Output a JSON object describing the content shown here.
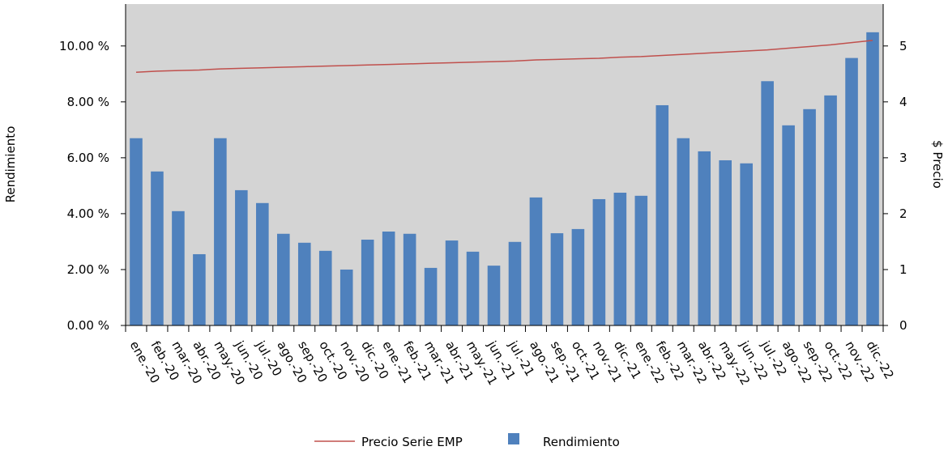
{
  "chart_data": {
    "type": "bar_line",
    "y_label": "Rendimiento",
    "y2_label": "$ Precio",
    "categories": [
      "ene.-20",
      "feb.-20",
      "mar.-20",
      "abr.-20",
      "may.-20",
      "jun.-20",
      "jul.-20",
      "ago.-20",
      "sep.-20",
      "oct.-20",
      "nov.-20",
      "dic.-20",
      "ene.-21",
      "feb.-21",
      "mar.-21",
      "abr.-21",
      "may.-21",
      "jun.-21",
      "jul.-21",
      "ago.-21",
      "sep.-21",
      "oct.-21",
      "nov.-21",
      "dic.-21",
      "ene.-22",
      "feb.-22",
      "mar.-22",
      "abr.-22",
      "may.-22",
      "jun.-22",
      "jul.-22",
      "ago.-22",
      "sep.-22",
      "oct.-22",
      "nov.-22",
      "dic.-22"
    ],
    "series": [
      {
        "name": "Precio Serie EMP",
        "color": "#c0504d",
        "axis": "y2",
        "kind": "line",
        "values": [
          4.53,
          4.55,
          4.56,
          4.57,
          4.59,
          4.6,
          4.61,
          4.62,
          4.63,
          4.64,
          4.65,
          4.66,
          4.67,
          4.68,
          4.69,
          4.7,
          4.71,
          4.72,
          4.73,
          4.75,
          4.76,
          4.77,
          4.78,
          4.8,
          4.81,
          4.83,
          4.85,
          4.87,
          4.89,
          4.91,
          4.93,
          4.96,
          4.99,
          5.02,
          5.06,
          5.1
        ]
      },
      {
        "name": "Rendimiento",
        "color": "#4f81bd",
        "axis": "y",
        "kind": "bar",
        "values": [
          6.7,
          5.51,
          4.09,
          2.55,
          6.7,
          4.84,
          4.38,
          3.28,
          2.96,
          2.67,
          2.0,
          3.07,
          3.36,
          3.28,
          2.06,
          3.04,
          2.64,
          2.14,
          2.99,
          4.58,
          3.3,
          3.45,
          4.52,
          4.75,
          4.64,
          7.88,
          6.7,
          6.23,
          5.91,
          5.8,
          8.74,
          7.16,
          7.74,
          8.23,
          9.57,
          10.49
        ]
      }
    ],
    "ylim": [
      0,
      11.5
    ],
    "yticks": [
      {
        "value": 0,
        "label": "0.00 %"
      },
      {
        "value": 2,
        "label": "2.00 %"
      },
      {
        "value": 4,
        "label": "4.00 %"
      },
      {
        "value": 6,
        "label": "6.00 %"
      },
      {
        "value": 8,
        "label": "8.00 %"
      },
      {
        "value": 10,
        "label": "10.00 %"
      }
    ],
    "y2lim": [
      0,
      5.75
    ],
    "y2ticks": [
      0,
      1,
      2,
      3,
      4,
      5
    ],
    "legend": "bottom"
  }
}
